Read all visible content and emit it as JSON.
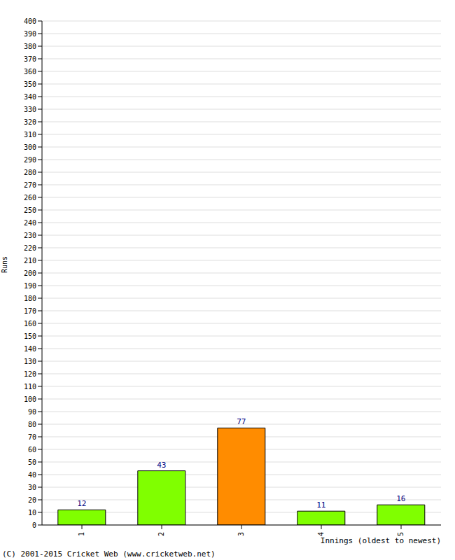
{
  "chart_data": {
    "type": "bar",
    "categories": [
      "1",
      "2",
      "3",
      "4",
      "5"
    ],
    "values": [
      12,
      43,
      77,
      11,
      16
    ],
    "colors": [
      "#80ff00",
      "#80ff00",
      "#ff8c00",
      "#80ff00",
      "#80ff00"
    ],
    "ylim": [
      0,
      400
    ],
    "yticks": [
      0,
      10,
      20,
      30,
      40,
      50,
      60,
      70,
      80,
      90,
      100,
      110,
      120,
      130,
      140,
      150,
      160,
      170,
      180,
      190,
      200,
      210,
      220,
      230,
      240,
      250,
      260,
      270,
      280,
      290,
      300,
      310,
      320,
      330,
      340,
      350,
      360,
      370,
      380,
      390,
      400
    ],
    "grid": true,
    "data_labels": true,
    "y_label": "Runs",
    "x_label": "Innings (oldest to newest)",
    "annotations": [
      "(C) 2001-2015 Cricket Web (www.cricketweb.net)"
    ]
  }
}
